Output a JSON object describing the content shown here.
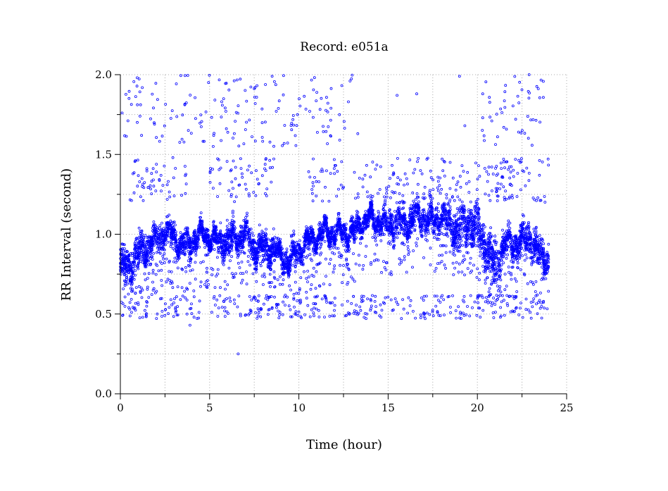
{
  "chart_data": {
    "type": "scatter",
    "title": "Record:  e051a",
    "xlabel": "Time (hour)",
    "ylabel": "RR Interval (second)",
    "xlim": [
      0,
      25
    ],
    "ylim": [
      0,
      2
    ],
    "xticks": [
      "0",
      "5",
      "10",
      "15",
      "20",
      "25"
    ],
    "yticks": [
      "0.0",
      "0.5",
      "1.0",
      "1.5",
      "2.0"
    ],
    "grid": true,
    "legend": "none",
    "marker": "open-circle",
    "color": "#0000ff",
    "record_span_hours": [
      0,
      24
    ],
    "trend": {
      "x": [
        0.0,
        0.5,
        1.0,
        1.5,
        2.0,
        2.5,
        3.0,
        3.5,
        4.0,
        4.5,
        5.0,
        5.5,
        6.0,
        6.5,
        7.0,
        7.5,
        8.0,
        8.5,
        9.0,
        9.5,
        10.0,
        10.5,
        11.0,
        11.5,
        12.0,
        12.5,
        13.0,
        13.5,
        14.0,
        14.5,
        15.0,
        15.5,
        16.0,
        16.5,
        17.0,
        17.5,
        18.0,
        18.5,
        19.0,
        19.5,
        20.0,
        20.5,
        21.0,
        21.5,
        22.0,
        22.5,
        23.0,
        23.5,
        24.0
      ],
      "y": [
        0.82,
        0.78,
        0.88,
        0.92,
        0.96,
        1.02,
        0.98,
        0.92,
        0.95,
        1.0,
        0.98,
        0.95,
        0.96,
        0.98,
        1.0,
        0.92,
        0.9,
        0.92,
        0.86,
        0.84,
        0.9,
        0.96,
        0.98,
        1.02,
        1.0,
        1.02,
        1.0,
        1.08,
        1.1,
        1.08,
        1.05,
        1.08,
        1.06,
        1.12,
        1.1,
        1.08,
        1.12,
        1.06,
        1.02,
        1.08,
        1.05,
        0.92,
        0.78,
        0.95,
        0.92,
        0.96,
        0.98,
        0.86,
        0.84
      ],
      "spread": [
        0.1,
        0.12,
        0.12,
        0.1,
        0.1,
        0.08,
        0.08,
        0.08,
        0.07,
        0.06,
        0.06,
        0.08,
        0.1,
        0.1,
        0.08,
        0.1,
        0.1,
        0.08,
        0.08,
        0.08,
        0.08,
        0.07,
        0.06,
        0.06,
        0.06,
        0.06,
        0.08,
        0.06,
        0.06,
        0.08,
        0.1,
        0.1,
        0.1,
        0.08,
        0.08,
        0.1,
        0.08,
        0.12,
        0.14,
        0.12,
        0.14,
        0.14,
        0.16,
        0.1,
        0.1,
        0.12,
        0.12,
        0.1,
        0.1
      ]
    },
    "outlier_bands": [
      {
        "name": "high",
        "y_range": [
          1.55,
          2.0
        ],
        "x_ranges": [
          [
            0.2,
            2.5
          ],
          [
            2.5,
            7.5
          ],
          [
            7.5,
            10.5
          ],
          [
            10.5,
            13.0
          ],
          [
            20.2,
            23.8
          ]
        ]
      },
      {
        "name": "upper",
        "y_range": [
          1.2,
          1.48
        ],
        "x_ranges": [
          [
            0.4,
            3.8
          ],
          [
            5.0,
            8.6
          ],
          [
            10.5,
            12.5
          ],
          [
            13.0,
            22.0
          ],
          [
            21.0,
            24.0
          ]
        ]
      },
      {
        "name": "lower",
        "y_range": [
          0.47,
          0.62
        ],
        "x_ranges": [
          [
            0.1,
            1.5
          ],
          [
            2.0,
            4.5
          ],
          [
            5.0,
            10.0
          ],
          [
            10.0,
            13.0
          ],
          [
            13.0,
            19.5
          ],
          [
            19.5,
            24.0
          ]
        ]
      }
    ],
    "isolated_points": [
      {
        "x": 6.6,
        "y": 0.25
      },
      {
        "x": 3.9,
        "y": 0.43
      },
      {
        "x": 13.3,
        "y": 1.63
      },
      {
        "x": 15.5,
        "y": 1.87
      },
      {
        "x": 16.6,
        "y": 1.88
      },
      {
        "x": 19.0,
        "y": 1.99
      },
      {
        "x": 19.3,
        "y": 1.68
      },
      {
        "x": 20.3,
        "y": 1.88
      },
      {
        "x": 22.9,
        "y": 2.0
      },
      {
        "x": 0.1,
        "y": 1.76
      },
      {
        "x": 5.2,
        "y": 1.55
      },
      {
        "x": 8.5,
        "y": 1.99
      }
    ]
  }
}
